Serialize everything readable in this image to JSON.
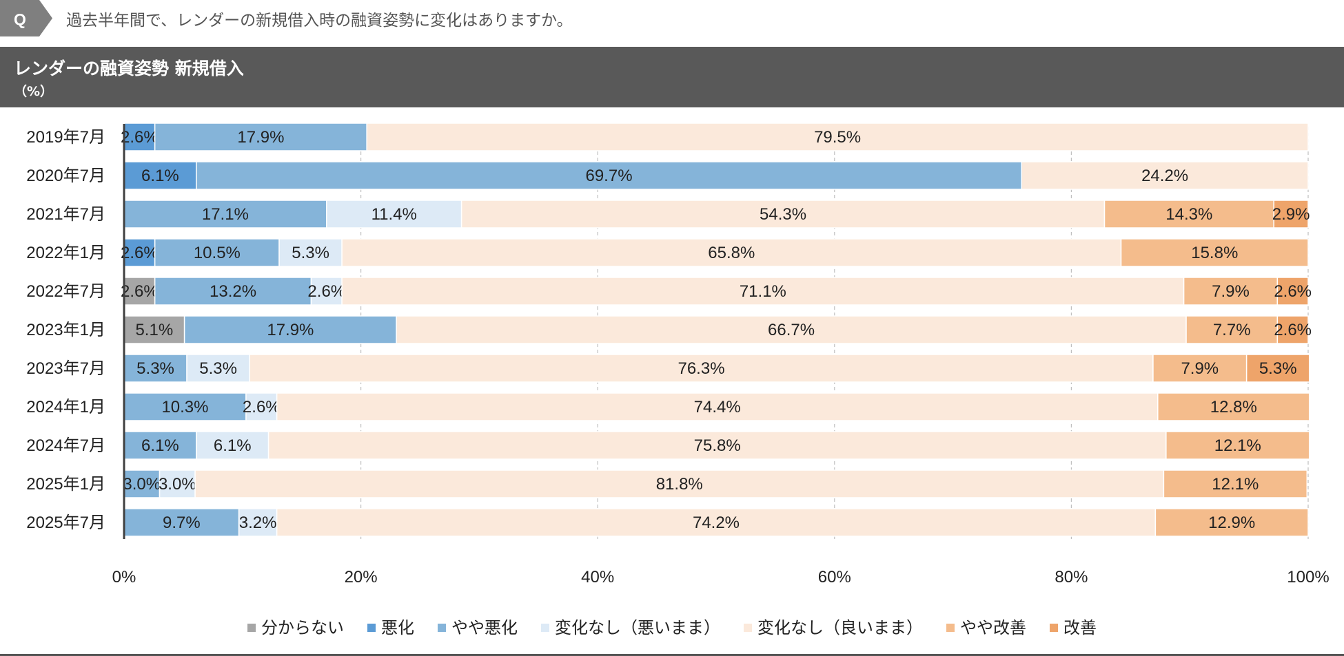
{
  "question": {
    "badge": "Q",
    "text": "過去半年間で、レンダーの新規借入時の融資姿勢に変化はありますか。"
  },
  "header": {
    "title": "レンダーの融資姿勢 新規借入",
    "unit": "（%）"
  },
  "colors": {
    "header_bg": "#595959",
    "badge_bg": "#7f7f7f",
    "gridline": "#bfbfbf",
    "axis": "#404040"
  },
  "chart_data": {
    "type": "bar",
    "orientation": "horizontal",
    "stacked": true,
    "categories": [
      "2019年7月",
      "2020年7月",
      "2021年7月",
      "2022年1月",
      "2022年7月",
      "2023年1月",
      "2023年7月",
      "2024年1月",
      "2024年7月",
      "2025年1月",
      "2025年7月"
    ],
    "xlim": [
      0,
      100
    ],
    "x_ticks": [
      "0%",
      "20%",
      "40%",
      "60%",
      "80%",
      "100%"
    ],
    "x_tick_values": [
      0,
      20,
      40,
      60,
      80,
      100
    ],
    "grid": true,
    "legend_position": "bottom",
    "series": [
      {
        "name": "分からない",
        "color": "#a6a6a6",
        "values": [
          0,
          0,
          0,
          0,
          2.6,
          5.1,
          0,
          0,
          0,
          0,
          0
        ]
      },
      {
        "name": "悪化",
        "color": "#5b9bd5",
        "values": [
          2.6,
          6.1,
          0,
          2.6,
          0,
          0,
          0,
          0,
          0,
          0,
          0
        ]
      },
      {
        "name": "やや悪化",
        "color": "#85b4d9",
        "values": [
          17.9,
          69.7,
          17.1,
          10.5,
          13.2,
          17.9,
          5.3,
          10.3,
          6.1,
          3.0,
          9.7
        ]
      },
      {
        "name": "変化なし（悪いまま）",
        "color": "#ddeaf6",
        "values": [
          0,
          0,
          11.4,
          5.3,
          2.6,
          0,
          5.3,
          2.6,
          6.1,
          3.0,
          3.2
        ]
      },
      {
        "name": "変化なし（良いまま）",
        "color": "#fbe9db",
        "values": [
          79.5,
          24.2,
          54.3,
          65.8,
          71.1,
          66.7,
          76.3,
          74.4,
          75.8,
          81.8,
          74.2
        ]
      },
      {
        "name": "やや改善",
        "color": "#f4bc8c",
        "values": [
          0,
          0,
          14.3,
          15.8,
          7.9,
          7.7,
          7.9,
          12.8,
          12.1,
          12.1,
          12.9
        ]
      },
      {
        "name": "改善",
        "color": "#eea46a",
        "values": [
          0,
          0,
          2.9,
          0,
          2.6,
          2.6,
          5.3,
          0,
          0,
          0,
          0
        ]
      }
    ]
  }
}
